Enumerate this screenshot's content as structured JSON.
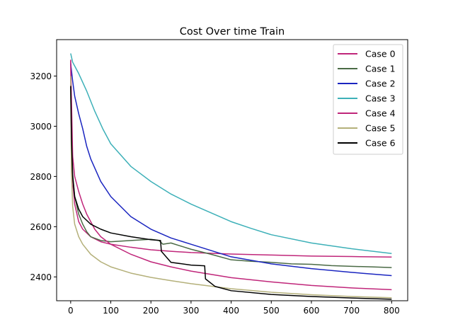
{
  "chart_data": {
    "type": "line",
    "title": "Cost Over time Train",
    "xlabel": "",
    "ylabel": "",
    "xlim": [
      -35,
      840
    ],
    "ylim": [
      2305,
      3345
    ],
    "xticks": [
      0,
      100,
      200,
      300,
      400,
      500,
      600,
      700,
      800
    ],
    "yticks": [
      2400,
      2600,
      2800,
      3000,
      3200
    ],
    "grid": false,
    "legend_position": "top-right",
    "series": [
      {
        "name": "Case 0",
        "color": "#c0267a",
        "x": [
          0,
          2,
          5,
          10,
          20,
          30,
          50,
          75,
          100,
          150,
          200,
          250,
          300,
          400,
          500,
          600,
          700,
          800
        ],
        "y": [
          3265,
          2960,
          2780,
          2690,
          2620,
          2590,
          2560,
          2540,
          2530,
          2518,
          2508,
          2502,
          2497,
          2491,
          2487,
          2483,
          2481,
          2479
        ]
      },
      {
        "name": "Case 1",
        "color": "#4a6a45",
        "x": [
          0,
          2,
          5,
          10,
          20,
          30,
          40,
          50,
          75,
          100,
          150,
          200,
          220,
          230,
          250,
          280,
          300,
          350,
          400,
          450,
          500,
          550,
          600,
          650,
          700,
          750,
          800
        ],
        "y": [
          3165,
          2950,
          2810,
          2720,
          2650,
          2610,
          2580,
          2560,
          2545,
          2540,
          2545,
          2550,
          2545,
          2530,
          2535,
          2520,
          2510,
          2490,
          2468,
          2462,
          2458,
          2452,
          2450,
          2445,
          2442,
          2440,
          2437
        ]
      },
      {
        "name": "Case 2",
        "color": "#1a25c0",
        "x": [
          0,
          5,
          10,
          20,
          30,
          40,
          50,
          75,
          100,
          150,
          200,
          250,
          300,
          350,
          400,
          500,
          600,
          700,
          800
        ],
        "y": [
          3250,
          3180,
          3120,
          3050,
          2990,
          2920,
          2870,
          2780,
          2720,
          2640,
          2590,
          2555,
          2530,
          2505,
          2480,
          2452,
          2433,
          2418,
          2405
        ]
      },
      {
        "name": "Case 3",
        "color": "#3db0b8",
        "x": [
          0,
          5,
          10,
          20,
          40,
          60,
          80,
          100,
          150,
          200,
          250,
          300,
          350,
          400,
          450,
          500,
          600,
          700,
          800
        ],
        "y": [
          3290,
          3255,
          3240,
          3210,
          3140,
          3060,
          2990,
          2930,
          2840,
          2780,
          2730,
          2690,
          2655,
          2620,
          2593,
          2568,
          2535,
          2512,
          2493
        ]
      },
      {
        "name": "Case 4",
        "color": "#c0267a",
        "x": [
          0,
          5,
          10,
          20,
          30,
          40,
          50,
          60,
          75,
          100,
          150,
          200,
          250,
          300,
          400,
          500,
          600,
          700,
          800
        ],
        "y": [
          3260,
          2880,
          2800,
          2740,
          2690,
          2650,
          2620,
          2590,
          2560,
          2530,
          2490,
          2460,
          2440,
          2423,
          2397,
          2380,
          2366,
          2356,
          2349
        ]
      },
      {
        "name": "Case 5",
        "color": "#b4b07a",
        "x": [
          0,
          2,
          5,
          10,
          20,
          30,
          50,
          75,
          100,
          150,
          200,
          250,
          300,
          400,
          500,
          600,
          700,
          800
        ],
        "y": [
          3200,
          2820,
          2680,
          2610,
          2560,
          2530,
          2490,
          2460,
          2440,
          2415,
          2398,
          2385,
          2373,
          2353,
          2339,
          2329,
          2322,
          2317
        ]
      },
      {
        "name": "Case 6",
        "color": "#000000",
        "x": [
          0,
          2,
          5,
          10,
          20,
          30,
          50,
          75,
          100,
          150,
          200,
          224,
          226,
          250,
          300,
          334,
          336,
          360,
          400,
          500,
          600,
          700,
          800
        ],
        "y": [
          3160,
          2950,
          2800,
          2720,
          2670,
          2640,
          2610,
          2590,
          2575,
          2560,
          2548,
          2545,
          2502,
          2458,
          2447,
          2444,
          2392,
          2362,
          2345,
          2330,
          2322,
          2316,
          2311
        ]
      }
    ]
  }
}
